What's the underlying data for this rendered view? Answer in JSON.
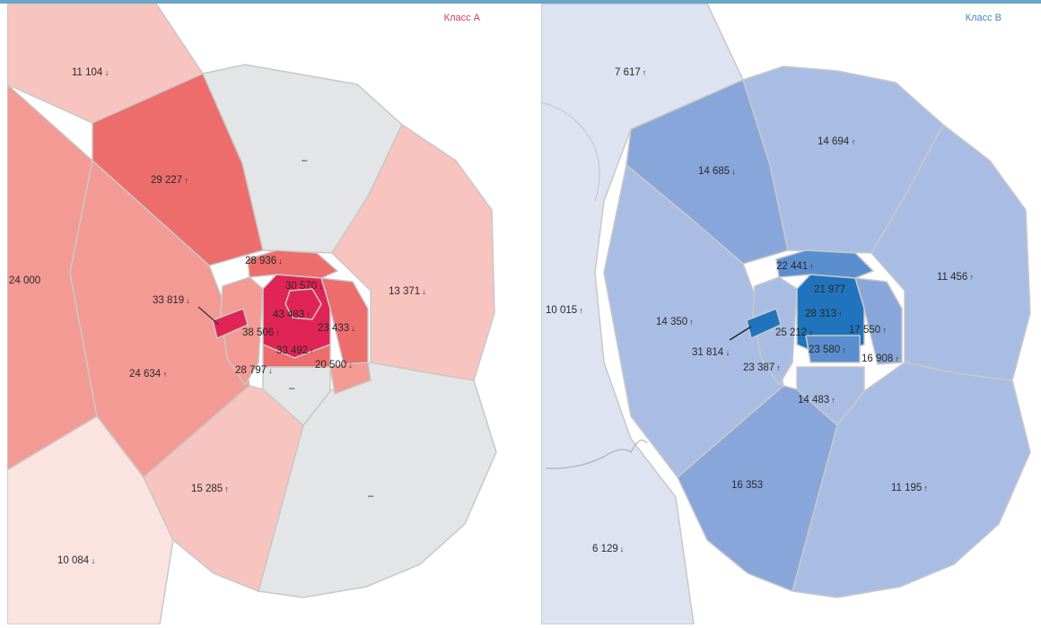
{
  "map_a": {
    "title": "Класс А",
    "no_data_fill": "#e4e5e7",
    "scale": [
      "#fbe3e0",
      "#f8c4bf",
      "#f39a94",
      "#ec6d6c",
      "#e02455"
    ],
    "labels": [
      {
        "text": "11 104",
        "trend": "down"
      },
      {
        "text": "29 227",
        "trend": "up"
      },
      {
        "text": "24 000",
        "trend": "none"
      },
      {
        "text": "28 936",
        "trend": "down"
      },
      {
        "text": "30 570",
        "trend": "down"
      },
      {
        "text": "33 819",
        "trend": "down"
      },
      {
        "text": "43 483",
        "trend": "up"
      },
      {
        "text": "23 433",
        "trend": "down"
      },
      {
        "text": "38 506",
        "trend": "up"
      },
      {
        "text": "33 492",
        "trend": "up"
      },
      {
        "text": "28 797",
        "trend": "down"
      },
      {
        "text": "20 500",
        "trend": "down"
      },
      {
        "text": "13 371",
        "trend": "down"
      },
      {
        "text": "24 634",
        "trend": "up"
      },
      {
        "text": "15 285",
        "trend": "up"
      },
      {
        "text": "10 084",
        "trend": "down"
      },
      {
        "text": "–",
        "trend": "none"
      },
      {
        "text": "–",
        "trend": "none"
      },
      {
        "text": "–",
        "trend": "none"
      }
    ]
  },
  "map_b": {
    "title": "Класс В",
    "scale": [
      "#dde3f1",
      "#a9bde4",
      "#89a6da",
      "#5b8ece",
      "#1f74bd"
    ],
    "labels": [
      {
        "text": "7 617",
        "trend": "up"
      },
      {
        "text": "14 694",
        "trend": "up"
      },
      {
        "text": "14 685",
        "trend": "down"
      },
      {
        "text": "11 456",
        "trend": "up"
      },
      {
        "text": "22 441",
        "trend": "up"
      },
      {
        "text": "21 977",
        "trend": "none"
      },
      {
        "text": "10 015",
        "trend": "up"
      },
      {
        "text": "14 350",
        "trend": "up"
      },
      {
        "text": "28 313",
        "trend": "up"
      },
      {
        "text": "25 212",
        "trend": "up"
      },
      {
        "text": "17 550",
        "trend": "up"
      },
      {
        "text": "31 814",
        "trend": "down"
      },
      {
        "text": "23 580",
        "trend": "up"
      },
      {
        "text": "23 387",
        "trend": "up"
      },
      {
        "text": "16 908",
        "trend": "up"
      },
      {
        "text": "14 483",
        "trend": "up"
      },
      {
        "text": "16 353",
        "trend": "none"
      },
      {
        "text": "11 195",
        "trend": "up"
      },
      {
        "text": "6 129",
        "trend": "down"
      }
    ]
  }
}
